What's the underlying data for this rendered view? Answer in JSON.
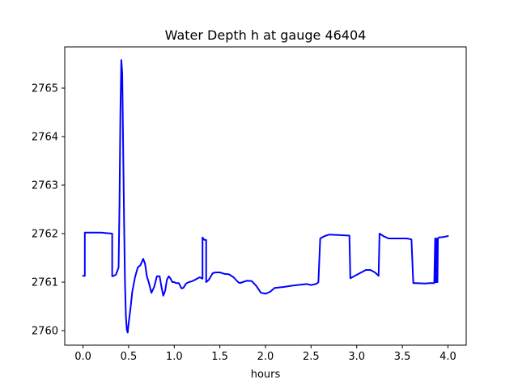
{
  "chart_data": {
    "type": "line",
    "title": "Water Depth h at gauge 46404",
    "xlabel": "hours",
    "ylabel": "",
    "xlim": [
      -0.2,
      4.2
    ],
    "ylim": [
      2759.7,
      2765.85
    ],
    "xticks": [
      0.0,
      0.5,
      1.0,
      1.5,
      2.0,
      2.5,
      3.0,
      3.5,
      4.0
    ],
    "xtick_labels": [
      "0.0",
      "0.5",
      "1.0",
      "1.5",
      "2.0",
      "2.5",
      "3.0",
      "3.5",
      "4.0"
    ],
    "yticks": [
      2760,
      2761,
      2762,
      2763,
      2764,
      2765
    ],
    "ytick_labels": [
      "2760",
      "2761",
      "2762",
      "2763",
      "2764",
      "2765"
    ],
    "grid": false,
    "series": [
      {
        "color": "#0000ff",
        "x": [
          0.0,
          0.02,
          0.02,
          0.1,
          0.2,
          0.32,
          0.32,
          0.36,
          0.39,
          0.4,
          0.41,
          0.42,
          0.43,
          0.44,
          0.45,
          0.46,
          0.47,
          0.48,
          0.49,
          0.5,
          0.52,
          0.54,
          0.57,
          0.6,
          0.63,
          0.66,
          0.68,
          0.7,
          0.72,
          0.75,
          0.78,
          0.81,
          0.84,
          0.86,
          0.88,
          0.9,
          0.92,
          0.94,
          0.96,
          0.98,
          1.0,
          1.02,
          1.05,
          1.08,
          1.1,
          1.13,
          1.16,
          1.2,
          1.24,
          1.28,
          1.31,
          1.31,
          1.33,
          1.35,
          1.35,
          1.38,
          1.42,
          1.45,
          1.5,
          1.55,
          1.6,
          1.65,
          1.7,
          1.72,
          1.75,
          1.8,
          1.85,
          1.9,
          1.95,
          2.0,
          2.05,
          2.1,
          2.2,
          2.3,
          2.4,
          2.45,
          2.5,
          2.55,
          2.57,
          2.58,
          2.6,
          2.65,
          2.7,
          2.8,
          2.9,
          2.92,
          2.93,
          3.0,
          3.1,
          3.15,
          3.2,
          3.24,
          3.25,
          3.3,
          3.35,
          3.4,
          3.45,
          3.55,
          3.6,
          3.62,
          3.65,
          3.75,
          3.8,
          3.85,
          3.86,
          3.865,
          3.87,
          3.875,
          3.88,
          3.885,
          3.89,
          3.9,
          3.95,
          4.0
        ],
        "y": [
          2761.13,
          2761.13,
          2762.02,
          2762.02,
          2762.02,
          2762.0,
          2761.12,
          2761.15,
          2761.3,
          2762.6,
          2764.5,
          2765.58,
          2765.3,
          2763.8,
          2762.3,
          2761.0,
          2760.3,
          2760.02,
          2759.96,
          2760.15,
          2760.45,
          2760.8,
          2761.1,
          2761.3,
          2761.35,
          2761.48,
          2761.38,
          2761.12,
          2761.0,
          2760.78,
          2760.9,
          2761.12,
          2761.12,
          2760.9,
          2760.72,
          2760.82,
          2761.05,
          2761.12,
          2761.07,
          2761.0,
          2761.0,
          2760.98,
          2760.98,
          2760.87,
          2760.88,
          2760.97,
          2761.0,
          2761.02,
          2761.06,
          2761.1,
          2761.07,
          2761.92,
          2761.87,
          2761.87,
          2761.0,
          2761.05,
          2761.18,
          2761.2,
          2761.2,
          2761.17,
          2761.16,
          2761.1,
          2761.0,
          2760.98,
          2761.0,
          2761.03,
          2761.02,
          2760.92,
          2760.78,
          2760.76,
          2760.8,
          2760.88,
          2760.9,
          2760.93,
          2760.95,
          2760.96,
          2760.94,
          2760.96,
          2760.98,
          2761.0,
          2761.9,
          2761.95,
          2761.98,
          2761.97,
          2761.96,
          2761.96,
          2761.08,
          2761.15,
          2761.25,
          2761.25,
          2761.2,
          2761.13,
          2762.0,
          2761.94,
          2761.9,
          2761.9,
          2761.9,
          2761.9,
          2761.88,
          2760.98,
          2760.98,
          2760.97,
          2760.98,
          2760.98,
          2761.9,
          2761.0,
          2761.0,
          2761.9,
          2761.0,
          2761.0,
          2761.9,
          2761.92,
          2761.93,
          2761.95
        ]
      }
    ]
  }
}
